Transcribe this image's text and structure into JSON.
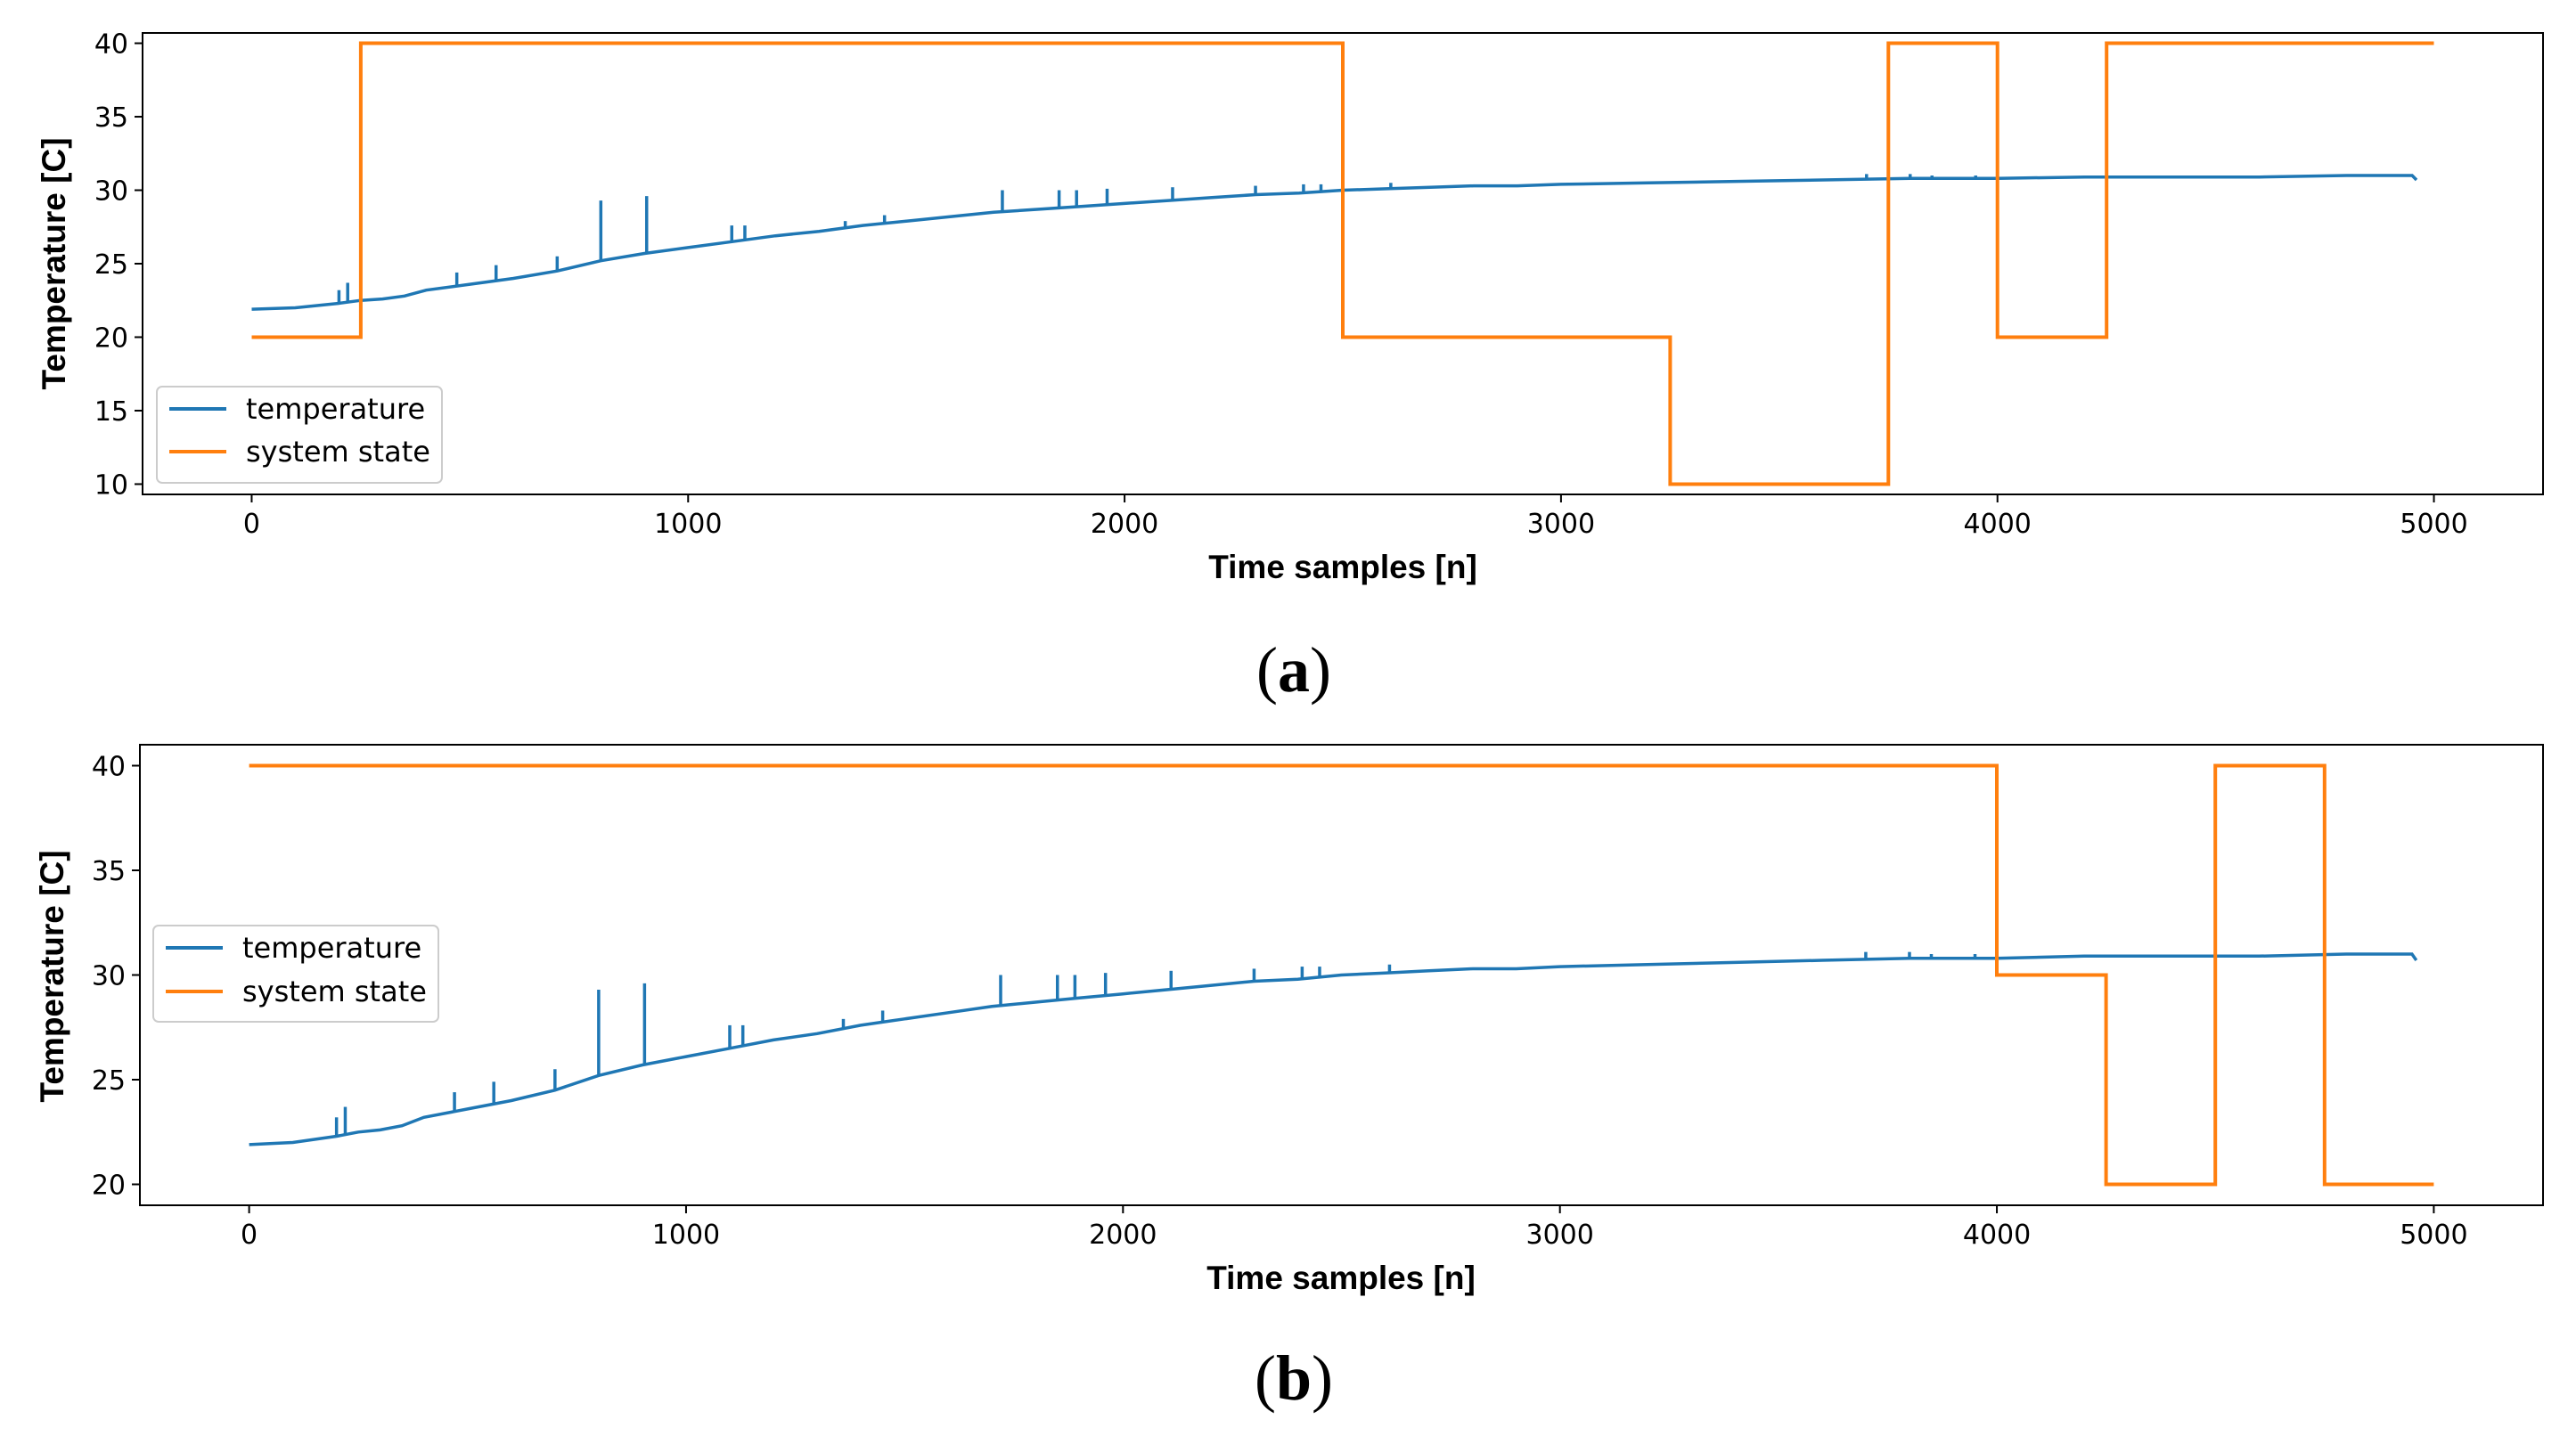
{
  "chart_data": [
    {
      "id": "a",
      "type": "line",
      "caption": "a",
      "xlabel": "Time samples [n]",
      "ylabel": "Temperature [C]",
      "xlim": [
        -250,
        5250
      ],
      "ylim": [
        9.3,
        40.7
      ],
      "xticks": [
        0,
        1000,
        2000,
        3000,
        4000,
        5000
      ],
      "yticks": [
        10,
        15,
        20,
        25,
        30,
        35,
        40
      ],
      "grid": false,
      "legend_position": "lower-left",
      "series": [
        {
          "name": "temperature",
          "color": "#1f77b4",
          "style": "line",
          "x": [
            0,
            100,
            200,
            250,
            300,
            350,
            400,
            500,
            600,
            700,
            800,
            900,
            1000,
            1100,
            1200,
            1300,
            1400,
            1500,
            1600,
            1700,
            1800,
            1900,
            2000,
            2100,
            2200,
            2300,
            2400,
            2500,
            2600,
            2700,
            2800,
            2900,
            3000,
            3200,
            3400,
            3600,
            3800,
            4000,
            4200,
            4400,
            4600,
            4800,
            4950,
            4960
          ],
          "values": [
            21.9,
            22.0,
            22.3,
            22.5,
            22.6,
            22.8,
            23.2,
            23.6,
            24.0,
            24.5,
            25.2,
            25.7,
            26.1,
            26.5,
            26.9,
            27.2,
            27.6,
            27.9,
            28.2,
            28.5,
            28.7,
            28.9,
            29.1,
            29.3,
            29.5,
            29.7,
            29.8,
            30.0,
            30.1,
            30.2,
            30.3,
            30.3,
            30.4,
            30.5,
            30.6,
            30.7,
            30.8,
            30.8,
            30.9,
            30.9,
            30.9,
            31.0,
            31.0,
            30.7
          ],
          "spikes": [
            [
              200,
              23.2
            ],
            [
              220,
              23.7
            ],
            [
              470,
              24.4
            ],
            [
              560,
              24.9
            ],
            [
              700,
              25.5
            ],
            [
              800,
              29.3
            ],
            [
              905,
              29.6
            ],
            [
              1100,
              27.6
            ],
            [
              1130,
              27.6
            ],
            [
              1360,
              27.9
            ],
            [
              1450,
              28.3
            ],
            [
              1720,
              30.0
            ],
            [
              1850,
              30.0
            ],
            [
              1890,
              30.0
            ],
            [
              1960,
              30.1
            ],
            [
              2110,
              30.2
            ],
            [
              2300,
              30.3
            ],
            [
              2410,
              30.4
            ],
            [
              2450,
              30.4
            ],
            [
              2610,
              30.5
            ],
            [
              3700,
              31.1
            ],
            [
              3800,
              31.1
            ],
            [
              3850,
              31.0
            ],
            [
              3950,
              31.0
            ]
          ]
        },
        {
          "name": "system state",
          "color": "#ff7f0e",
          "style": "step",
          "x": [
            0,
            250,
            250,
            2500,
            2500,
            3250,
            3250,
            3750,
            3750,
            4000,
            4000,
            4250,
            4250,
            5000
          ],
          "values": [
            20,
            20,
            40,
            40,
            20,
            20,
            10,
            10,
            40,
            40,
            20,
            20,
            40,
            40
          ]
        }
      ]
    },
    {
      "id": "b",
      "type": "line",
      "caption": "b",
      "xlabel": "Time samples [n]",
      "ylabel": "Temperature [C]",
      "xlim": [
        -250,
        5250
      ],
      "ylim": [
        19.0,
        41.0
      ],
      "xticks": [
        0,
        1000,
        2000,
        3000,
        4000,
        5000
      ],
      "yticks": [
        20,
        25,
        30,
        35,
        40
      ],
      "grid": false,
      "legend_position": "center-left",
      "series": [
        {
          "name": "temperature",
          "color": "#1f77b4",
          "style": "line",
          "x": [
            0,
            100,
            200,
            250,
            300,
            350,
            400,
            500,
            600,
            700,
            800,
            900,
            1000,
            1100,
            1200,
            1300,
            1400,
            1500,
            1600,
            1700,
            1800,
            1900,
            2000,
            2100,
            2200,
            2300,
            2400,
            2500,
            2600,
            2700,
            2800,
            2900,
            3000,
            3200,
            3400,
            3600,
            3800,
            4000,
            4200,
            4400,
            4600,
            4800,
            4950,
            4960
          ],
          "values": [
            21.9,
            22.0,
            22.3,
            22.5,
            22.6,
            22.8,
            23.2,
            23.6,
            24.0,
            24.5,
            25.2,
            25.7,
            26.1,
            26.5,
            26.9,
            27.2,
            27.6,
            27.9,
            28.2,
            28.5,
            28.7,
            28.9,
            29.1,
            29.3,
            29.5,
            29.7,
            29.8,
            30.0,
            30.1,
            30.2,
            30.3,
            30.3,
            30.4,
            30.5,
            30.6,
            30.7,
            30.8,
            30.8,
            30.9,
            30.9,
            30.9,
            31.0,
            31.0,
            30.7
          ],
          "spikes": [
            [
              200,
              23.2
            ],
            [
              220,
              23.7
            ],
            [
              470,
              24.4
            ],
            [
              560,
              24.9
            ],
            [
              700,
              25.5
            ],
            [
              800,
              29.3
            ],
            [
              905,
              29.6
            ],
            [
              1100,
              27.6
            ],
            [
              1130,
              27.6
            ],
            [
              1360,
              27.9
            ],
            [
              1450,
              28.3
            ],
            [
              1720,
              30.0
            ],
            [
              1850,
              30.0
            ],
            [
              1890,
              30.0
            ],
            [
              1960,
              30.1
            ],
            [
              2110,
              30.2
            ],
            [
              2300,
              30.3
            ],
            [
              2410,
              30.4
            ],
            [
              2450,
              30.4
            ],
            [
              2610,
              30.5
            ],
            [
              3700,
              31.1
            ],
            [
              3800,
              31.1
            ],
            [
              3850,
              31.0
            ],
            [
              3950,
              31.0
            ]
          ]
        },
        {
          "name": "system state",
          "color": "#ff7f0e",
          "style": "step",
          "x": [
            0,
            4000,
            4000,
            4250,
            4250,
            4500,
            4500,
            4750,
            4750,
            5000
          ],
          "values": [
            40,
            40,
            30,
            30,
            20,
            20,
            40,
            40,
            20,
            20
          ]
        }
      ]
    }
  ]
}
